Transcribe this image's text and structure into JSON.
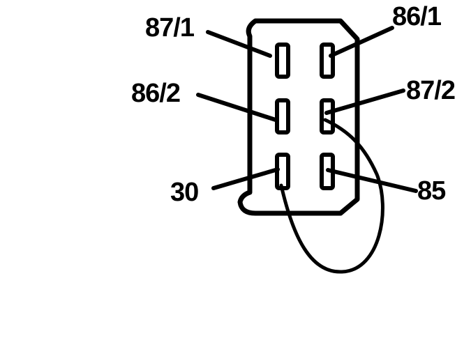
{
  "diagram": {
    "colors": {
      "ink": "#000000",
      "background": "#ffffff"
    },
    "terminals": {
      "t87_1": "87/1",
      "t86_1": "86/1",
      "t86_2": "86/2",
      "t87_2": "87/2",
      "t30": "30",
      "t85": "85"
    }
  }
}
